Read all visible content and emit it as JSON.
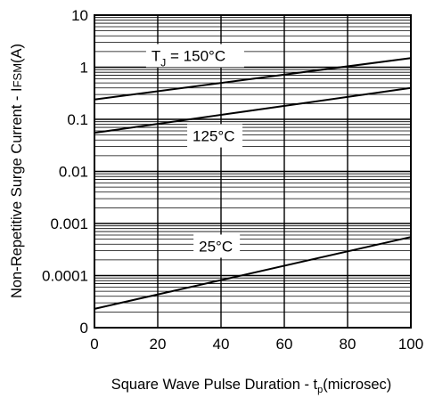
{
  "chart_data": {
    "type": "line",
    "xlabel": "Square Wave Pulse Duration - t",
    "xlabel_sub": "p",
    "xlabel_tail": "(microsec)",
    "ylabel": "Non-Repetitive Surge Current - I",
    "ylabel_small": "FSM",
    "ylabel_tail": "(A)",
    "xlim": [
      0,
      100
    ],
    "ylim": [
      0,
      10
    ],
    "y_scale": "log",
    "x_ticks": [
      "0",
      "20",
      "40",
      "60",
      "80",
      "100"
    ],
    "y_ticks": [
      "10",
      "1",
      "0.1",
      "0.01",
      "0.001",
      "0.0001",
      "0"
    ],
    "grid": true,
    "series": [
      {
        "name": "T_J = 150°C",
        "x": [
          0,
          100
        ],
        "y": [
          0.24,
          1.5
        ]
      },
      {
        "name": "125°C",
        "x": [
          0,
          100
        ],
        "y": [
          0.055,
          0.4
        ]
      },
      {
        "name": "25°C",
        "x": [
          0,
          100
        ],
        "y": [
          2.3e-05,
          0.00055
        ]
      }
    ],
    "annotations": [
      {
        "text_main": "T",
        "text_sub": "J",
        "text_tail": " = 150°C"
      },
      {
        "text_main": "125°C"
      },
      {
        "text_main": "25°C"
      }
    ]
  }
}
